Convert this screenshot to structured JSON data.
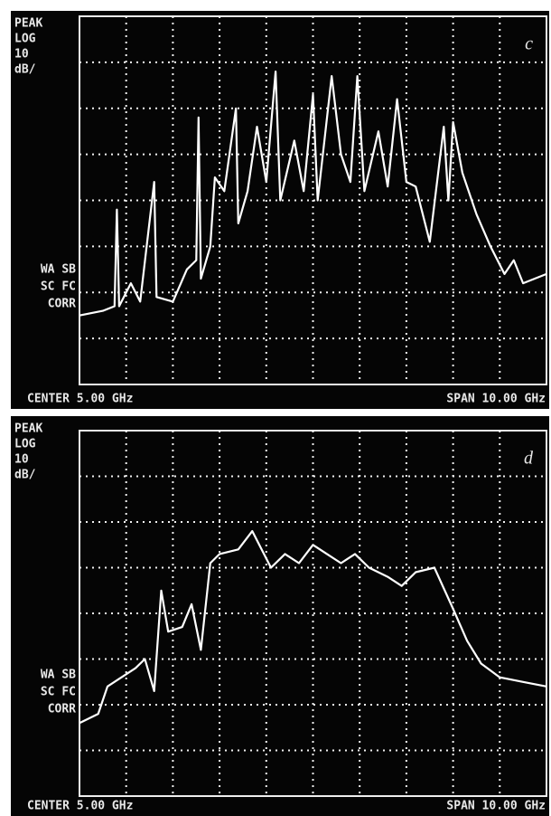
{
  "chart_data": [
    {
      "type": "line",
      "panel_label": "c",
      "color": "#ffffff",
      "side_labels_top": [
        "PEAK",
        "LOG",
        "10",
        "dB/"
      ],
      "side_labels_bottom": [
        "WA SB",
        "SC FC",
        "CORR"
      ],
      "center": "CENTER 5.00 GHz",
      "span": "SPAN 10.00 GHz",
      "xlim": [
        0,
        10
      ],
      "ylim": [
        -80,
        0
      ],
      "x": [
        0,
        0.5,
        0.75,
        0.8,
        0.85,
        1.1,
        1.3,
        1.6,
        1.65,
        2.0,
        2.3,
        2.5,
        2.55,
        2.6,
        2.8,
        2.9,
        3.1,
        3.35,
        3.4,
        3.6,
        3.8,
        4.0,
        4.2,
        4.3,
        4.6,
        4.8,
        5.0,
        5.1,
        5.4,
        5.6,
        5.8,
        5.95,
        6.1,
        6.4,
        6.6,
        6.8,
        7.0,
        7.2,
        7.5,
        7.8,
        7.9,
        8.0,
        8.2,
        8.5,
        8.8,
        9.1,
        9.3,
        9.5,
        10
      ],
      "values": [
        -65,
        -64,
        -63,
        -42,
        -63,
        -58,
        -62,
        -36,
        -61,
        -62,
        -55,
        -53,
        -22,
        -57,
        -50,
        -35,
        -38,
        -20,
        -45,
        -38,
        -24,
        -36,
        -12,
        -40,
        -27,
        -38,
        -17,
        -40,
        -13,
        -30,
        -36,
        -13,
        -38,
        -25,
        -37,
        -18,
        -36,
        -37,
        -49,
        -24,
        -40,
        -23,
        -34,
        -43,
        -50,
        -56,
        -53,
        -58,
        -56
      ]
    },
    {
      "type": "line",
      "panel_label": "d",
      "color": "#ffffff",
      "side_labels_top": [
        "PEAK",
        "LOG",
        "10",
        "dB/"
      ],
      "side_labels_bottom": [
        "WA SB",
        "SC FC",
        "CORR"
      ],
      "center": "CENTER 5.00 GHz",
      "span": "SPAN 10.00 GHz",
      "xlim": [
        0,
        10
      ],
      "ylim": [
        -80,
        0
      ],
      "x": [
        0,
        0.4,
        0.6,
        0.9,
        1.2,
        1.4,
        1.6,
        1.75,
        1.9,
        2.2,
        2.4,
        2.6,
        2.8,
        3.0,
        3.4,
        3.7,
        3.9,
        4.1,
        4.4,
        4.7,
        5.0,
        5.3,
        5.6,
        5.9,
        6.2,
        6.6,
        6.9,
        7.2,
        7.6,
        8.0,
        8.3,
        8.6,
        9.0,
        9.5,
        10
      ],
      "values": [
        -64,
        -62,
        -56,
        -54,
        -52,
        -50,
        -57,
        -35,
        -44,
        -43,
        -38,
        -48,
        -29,
        -27,
        -26,
        -22,
        -26,
        -30,
        -27,
        -29,
        -25,
        -27,
        -29,
        -27,
        -30,
        -32,
        -34,
        -31,
        -30,
        -39,
        -46,
        -51,
        -54,
        -55,
        -56
      ]
    }
  ]
}
